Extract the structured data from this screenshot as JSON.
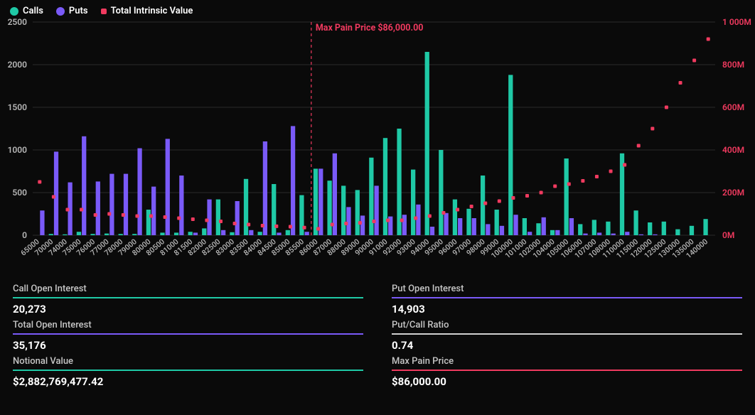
{
  "colors": {
    "background": "#0a0a0a",
    "calls": "#1fc9a6",
    "puts": "#7a5af8",
    "intrinsic": "#f03a5f",
    "grid": "#2a2a2a",
    "axis_text": "#b8b8b8",
    "white": "#ffffff",
    "divider_white": "#d0d0d0"
  },
  "legend": {
    "calls": "Calls",
    "puts": "Puts",
    "intrinsic": "Total Intrinsic Value"
  },
  "chart": {
    "type": "bar+scatter",
    "y_left": {
      "min": 0,
      "max": 2500,
      "step": 500
    },
    "y_right": {
      "min": 0,
      "max": 1000,
      "step": 200,
      "suffix": "M",
      "top_label": "1 000M"
    },
    "max_pain": {
      "label": "Max Pain Price $86,000.00",
      "strike": 86000
    },
    "strikes": [
      65000,
      70000,
      74000,
      75000,
      76000,
      77000,
      78000,
      79000,
      80000,
      80500,
      81000,
      81500,
      82000,
      82500,
      83000,
      83500,
      84000,
      84500,
      85000,
      85500,
      86000,
      87000,
      88000,
      89000,
      90000,
      91000,
      92000,
      93000,
      94000,
      95000,
      96000,
      97000,
      98000,
      99000,
      100000,
      101000,
      102000,
      104000,
      105000,
      106000,
      107000,
      108000,
      110000,
      115000,
      120000,
      125000,
      130000,
      135000,
      140000
    ],
    "calls": [
      0,
      15,
      10,
      40,
      15,
      20,
      15,
      15,
      300,
      30,
      30,
      40,
      80,
      420,
      35,
      660,
      40,
      600,
      60,
      470,
      780,
      640,
      580,
      530,
      910,
      1140,
      1250,
      770,
      2150,
      1000,
      420,
      310,
      700,
      300,
      1880,
      200,
      140,
      60,
      900,
      130,
      180,
      160,
      960,
      290,
      150,
      160,
      70,
      110,
      190
    ],
    "puts": [
      290,
      980,
      620,
      1160,
      630,
      720,
      720,
      1020,
      570,
      1130,
      700,
      30,
      420,
      60,
      400,
      60,
      1100,
      30,
      1280,
      40,
      780,
      960,
      330,
      230,
      580,
      220,
      240,
      360,
      100,
      260,
      200,
      200,
      130,
      110,
      240,
      40,
      210,
      60,
      200,
      20,
      30,
      20,
      40,
      10,
      10,
      0,
      0,
      0,
      0
    ],
    "intrinsic_m": [
      250,
      180,
      120,
      120,
      95,
      100,
      95,
      90,
      90,
      85,
      80,
      75,
      70,
      65,
      55,
      50,
      45,
      42,
      40,
      36,
      30,
      50,
      55,
      58,
      65,
      70,
      70,
      80,
      90,
      105,
      120,
      135,
      150,
      160,
      175,
      185,
      200,
      230,
      240,
      255,
      275,
      300,
      330,
      420,
      500,
      600,
      715,
      820,
      920
    ]
  },
  "stats": {
    "call_oi": {
      "label": "Call Open Interest",
      "value": "20,273",
      "color": "#1fc9a6"
    },
    "put_oi": {
      "label": "Put Open Interest",
      "value": "14,903",
      "color": "#7a5af8"
    },
    "total_oi": {
      "label": "Total Open Interest",
      "value": "35,176",
      "color": "#7a5af8"
    },
    "pc_ratio": {
      "label": "Put/Call Ratio",
      "value": "0.74",
      "color": "#d0d0d0"
    },
    "notional": {
      "label": "Notional Value",
      "value": "$2,882,769,477.42",
      "color": "#1fc9a6"
    },
    "max_pain": {
      "label": "Max Pain Price",
      "value": "$86,000.00",
      "color": "#f03a5f"
    }
  }
}
